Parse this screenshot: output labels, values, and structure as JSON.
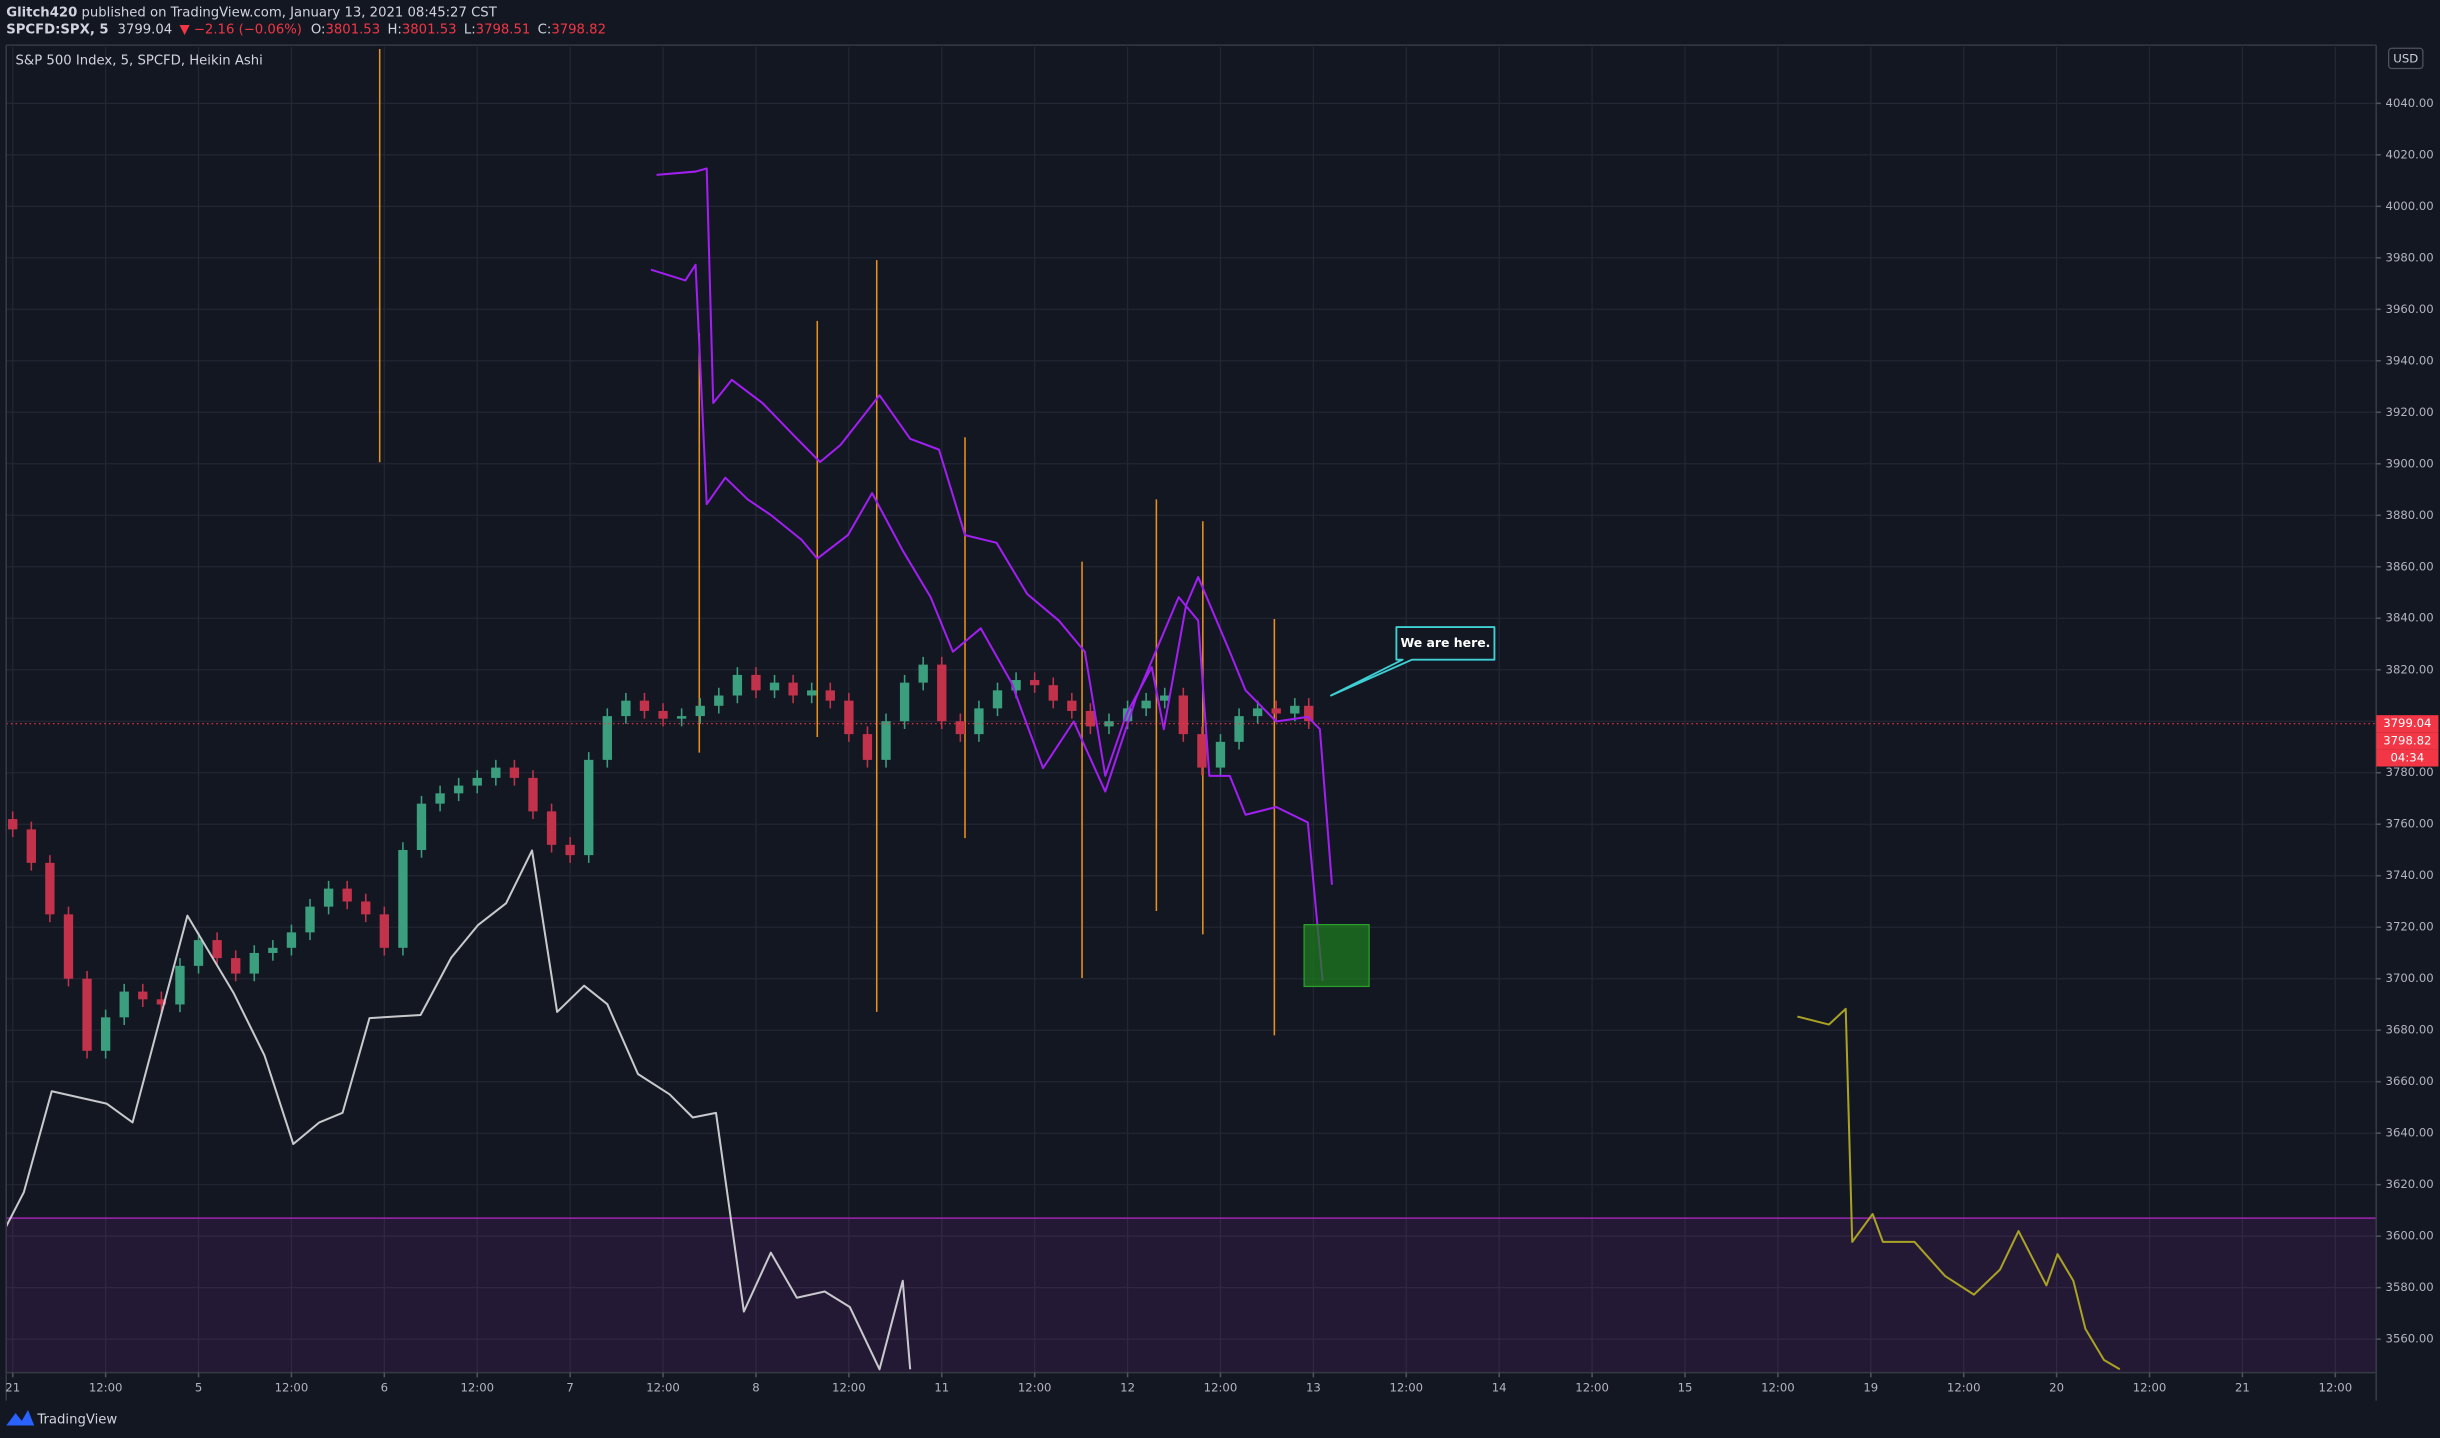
{
  "header": {
    "author": "Glitch420",
    "published": "published on TradingView.com, January 13, 2021 08:45:27 CST",
    "symbol": "SPCFD:SPX, 5",
    "last": 3799.04,
    "change": "▼ −2.16 (−0.06%)",
    "ohlc": [
      {
        "label": "O:",
        "value": 3801.53
      },
      {
        "label": "H:",
        "value": 3801.53
      },
      {
        "label": "L:",
        "value": 3798.51
      },
      {
        "label": "C:",
        "value": 3798.82
      }
    ]
  },
  "footer": {
    "brand": "TradingView"
  },
  "chart_data": {
    "type": "candlestick",
    "title": "S&P 500 Index, 5, SPCFD, Heikin Ashi",
    "currency": "USD",
    "countdown": "04:34",
    "grid": true,
    "background": "#131722",
    "xlim": [
      -0.07,
      25.44
    ],
    "ylim": [
      3547,
      4062
    ],
    "xticks": [
      {
        "value": 0,
        "label": "21"
      },
      {
        "value": 1,
        "label": "12:00"
      },
      {
        "value": 2,
        "label": "5"
      },
      {
        "value": 3,
        "label": "12:00"
      },
      {
        "value": 4,
        "label": "6"
      },
      {
        "value": 5,
        "label": "12:00"
      },
      {
        "value": 6,
        "label": "7"
      },
      {
        "value": 7,
        "label": "12:00"
      },
      {
        "value": 8,
        "label": "8"
      },
      {
        "value": 9,
        "label": "12:00"
      },
      {
        "value": 10,
        "label": "11"
      },
      {
        "value": 11,
        "label": "12:00"
      },
      {
        "value": 12,
        "label": "12"
      },
      {
        "value": 13,
        "label": "12:00"
      },
      {
        "value": 14,
        "label": "13"
      },
      {
        "value": 15,
        "label": "12:00"
      },
      {
        "value": 16,
        "label": "14"
      },
      {
        "value": 17,
        "label": "12:00"
      },
      {
        "value": 18,
        "label": "15"
      },
      {
        "value": 19,
        "label": "12:00"
      },
      {
        "value": 20,
        "label": "19"
      },
      {
        "value": 21,
        "label": "12:00"
      },
      {
        "value": 22,
        "label": "20"
      },
      {
        "value": 23,
        "label": "12:00"
      },
      {
        "value": 24,
        "label": "21"
      },
      {
        "value": 25,
        "label": "12:00"
      }
    ],
    "yticks": [
      {
        "value": 3560,
        "label": "3560.00"
      },
      {
        "value": 3580,
        "label": "3580.00"
      },
      {
        "value": 3600,
        "label": "3600.00"
      },
      {
        "value": 3620,
        "label": "3620.00"
      },
      {
        "value": 3640,
        "label": "3640.00"
      },
      {
        "value": 3660,
        "label": "3660.00"
      },
      {
        "value": 3680,
        "label": "3680.00"
      },
      {
        "value": 3700,
        "label": "3700.00"
      },
      {
        "value": 3720,
        "label": "3720.00"
      },
      {
        "value": 3740,
        "label": "3740.00"
      },
      {
        "value": 3760,
        "label": "3760.00"
      },
      {
        "value": 3780,
        "label": "3780.00"
      },
      {
        "value": 3800,
        "label": "3800.00"
      },
      {
        "value": 3820,
        "label": "3820.00"
      },
      {
        "value": 3840,
        "label": "3840.00"
      },
      {
        "value": 3860,
        "label": "3860.00"
      },
      {
        "value": 3880,
        "label": "3880.00"
      },
      {
        "value": 3900,
        "label": "3900.00"
      },
      {
        "value": 3920,
        "label": "3920.00"
      },
      {
        "value": 3940,
        "label": "3940.00"
      },
      {
        "value": 3960,
        "label": "3960.00"
      },
      {
        "value": 3980,
        "label": "3980.00"
      },
      {
        "value": 4000,
        "label": "4000.00"
      },
      {
        "value": 4020,
        "label": "4020.00"
      },
      {
        "value": 4040,
        "label": "4040.00"
      }
    ],
    "candles": {
      "up_color": "#3b9f7e",
      "down_color": "#c2334b",
      "x": [
        0,
        0.2,
        0.4,
        0.6,
        0.8,
        1.0,
        1.2,
        1.4,
        1.6,
        1.8,
        2.0,
        2.2,
        2.4,
        2.6,
        2.8,
        3.0,
        3.2,
        3.4,
        3.6,
        3.8,
        4.0,
        4.2,
        4.4,
        4.6,
        4.8,
        5.0,
        5.2,
        5.4,
        5.6,
        5.8,
        6.0,
        6.2,
        6.4,
        6.6,
        6.8,
        7.0,
        7.2,
        7.4,
        7.6,
        7.8,
        8.0,
        8.2,
        8.4,
        8.6,
        8.8,
        9.0,
        9.2,
        9.4,
        9.6,
        9.8,
        10.0,
        10.2,
        10.4,
        10.6,
        10.8,
        11.0,
        11.2,
        11.4,
        11.6,
        11.8,
        12.0,
        12.2,
        12.4,
        12.6,
        12.8,
        13.0,
        13.2,
        13.4,
        13.6,
        13.8,
        13.95
      ],
      "open": [
        3762,
        3758,
        3745,
        3725,
        3700,
        3672,
        3685,
        3695,
        3692,
        3690,
        3705,
        3715,
        3708,
        3702,
        3710,
        3712,
        3718,
        3728,
        3735,
        3730,
        3725,
        3712,
        3750,
        3768,
        3772,
        3775,
        3778,
        3782,
        3778,
        3765,
        3752,
        3748,
        3785,
        3802,
        3808,
        3804,
        3801,
        3802,
        3806,
        3810,
        3818,
        3812,
        3815,
        3810,
        3812,
        3808,
        3795,
        3785,
        3800,
        3815,
        3822,
        3800,
        3795,
        3805,
        3812,
        3816,
        3814,
        3808,
        3804,
        3798,
        3800,
        3805,
        3808,
        3810,
        3795,
        3782,
        3792,
        3802,
        3805,
        3803,
        3806
      ],
      "high": [
        3765,
        3761,
        3748,
        3728,
        3703,
        3688,
        3698,
        3698,
        3695,
        3708,
        3718,
        3718,
        3711,
        3713,
        3715,
        3721,
        3731,
        3738,
        3738,
        3733,
        3728,
        3753,
        3771,
        3775,
        3778,
        3781,
        3785,
        3785,
        3781,
        3768,
        3755,
        3788,
        3805,
        3811,
        3811,
        3807,
        3805,
        3809,
        3813,
        3821,
        3821,
        3818,
        3818,
        3815,
        3815,
        3811,
        3798,
        3803,
        3818,
        3825,
        3825,
        3803,
        3808,
        3815,
        3819,
        3819,
        3817,
        3811,
        3807,
        3803,
        3808,
        3811,
        3813,
        3813,
        3798,
        3795,
        3805,
        3808,
        3808,
        3809,
        3809
      ],
      "low": [
        3755,
        3742,
        3722,
        3697,
        3669,
        3669,
        3682,
        3689,
        3687,
        3687,
        3702,
        3705,
        3699,
        3699,
        3707,
        3709,
        3715,
        3725,
        3727,
        3722,
        3709,
        3709,
        3747,
        3765,
        3769,
        3772,
        3775,
        3775,
        3762,
        3749,
        3745,
        3745,
        3782,
        3799,
        3801,
        3798,
        3798,
        3799,
        3803,
        3807,
        3809,
        3809,
        3807,
        3807,
        3805,
        3792,
        3782,
        3782,
        3797,
        3812,
        3797,
        3792,
        3792,
        3802,
        3809,
        3811,
        3805,
        3801,
        3795,
        3795,
        3797,
        3802,
        3805,
        3792,
        3779,
        3779,
        3789,
        3799,
        3800,
        3800,
        3797
      ],
      "close": [
        3758,
        3745,
        3725,
        3700,
        3672,
        3685,
        3695,
        3692,
        3690,
        3705,
        3715,
        3708,
        3702,
        3710,
        3712,
        3718,
        3728,
        3735,
        3730,
        3725,
        3712,
        3750,
        3768,
        3772,
        3775,
        3778,
        3782,
        3778,
        3765,
        3752,
        3748,
        3785,
        3802,
        3808,
        3804,
        3801,
        3802,
        3806,
        3810,
        3818,
        3812,
        3815,
        3810,
        3812,
        3808,
        3795,
        3785,
        3800,
        3815,
        3822,
        3800,
        3795,
        3805,
        3812,
        3816,
        3814,
        3808,
        3804,
        3798,
        3800,
        3805,
        3808,
        3810,
        3795,
        3782,
        3792,
        3802,
        3805,
        3803,
        3806,
        3800
      ]
    },
    "series": [
      {
        "color": "#a21ff2",
        "x": [
          6.93,
          7.35,
          7.47,
          7.54,
          7.74,
          8.07,
          8.41,
          8.69,
          8.91,
          9.33,
          9.66,
          9.97,
          10.25,
          10.59,
          10.92,
          11.26,
          11.54,
          11.76,
          11.99,
          12.26,
          12.39,
          12.63,
          12.76,
          13.1,
          13.27,
          13.6,
          13.94,
          14.07,
          14.2
        ],
        "values": [
          4012.2,
          4013.5,
          4014.7,
          3923.6,
          3932.6,
          3923.6,
          3910.9,
          3900.7,
          3907.3,
          3926.6,
          3909.7,
          3905.5,
          3872.3,
          3869.3,
          3849.4,
          3839.1,
          3827.0,
          3778.8,
          3802.9,
          3821.0,
          3796.9,
          3845.1,
          3856.0,
          3827.0,
          3812.0,
          3799.9,
          3801.7,
          3796.9,
          3736.5
        ]
      },
      {
        "color": "#a21ff2",
        "x": [
          6.87,
          7.24,
          7.35,
          7.47,
          7.67,
          7.91,
          8.16,
          8.49,
          8.66,
          8.99,
          9.25,
          9.58,
          9.88,
          10.12,
          10.42,
          10.75,
          11.09,
          11.42,
          11.76,
          12.09,
          12.55,
          12.76,
          12.88,
          13.1,
          13.27,
          13.6,
          13.94,
          14.1
        ],
        "values": [
          3975.4,
          3971.2,
          3977.3,
          3884.3,
          3894.6,
          3886.2,
          3880.1,
          3870.5,
          3863.2,
          3872.3,
          3888.6,
          3866.3,
          3848.2,
          3827.0,
          3836.1,
          3815.0,
          3781.8,
          3799.9,
          3772.7,
          3808.9,
          3848.2,
          3839.1,
          3778.8,
          3778.8,
          3763.7,
          3766.7,
          3760.7,
          3699.1
        ]
      },
      {
        "color": "#c8c9cc",
        "x": [
          -0.07,
          0.12,
          0.42,
          1.01,
          1.29,
          1.88,
          2.38,
          2.71,
          3.02,
          3.3,
          3.55,
          3.84,
          4.39,
          4.72,
          5.01,
          5.31,
          5.59,
          5.86,
          6.15,
          6.4,
          6.73,
          7.07,
          7.32,
          7.57,
          7.87,
          8.16,
          8.44,
          8.74,
          9.01,
          9.33,
          9.58,
          9.66
        ],
        "values": [
          3603.8,
          3617.1,
          3656.3,
          3651.5,
          3644.2,
          3724.5,
          3694.3,
          3670.2,
          3635.8,
          3644.2,
          3647.9,
          3684.7,
          3685.9,
          3708.2,
          3720.9,
          3729.3,
          3749.8,
          3687.1,
          3697.3,
          3690.1,
          3663.0,
          3655.1,
          3646.1,
          3647.9,
          3570.7,
          3593.6,
          3576.1,
          3578.5,
          3572.5,
          3548.3,
          3582.7,
          3548.3
        ]
      },
      {
        "color": "#a9a224",
        "x": [
          19.21,
          19.55,
          19.73,
          19.8,
          20.02,
          20.13,
          20.47,
          20.8,
          21.11,
          21.39,
          21.59,
          21.89,
          22.01,
          22.18,
          22.31,
          22.51,
          22.68
        ],
        "values": [
          3685.3,
          3682.2,
          3688.3,
          3597.8,
          3608.6,
          3597.8,
          3597.8,
          3584.5,
          3577.3,
          3587.0,
          3602.0,
          3580.9,
          3593.0,
          3582.7,
          3564.0,
          3551.9,
          3548.3
        ]
      }
    ],
    "spikes": {
      "color": "#e8901e",
      "x": [
        3.95,
        7.39,
        8.66,
        9.3,
        10.25,
        11.51,
        12.31,
        12.81,
        13.58
      ],
      "low": [
        3900.6,
        3787.8,
        3793.9,
        3687.1,
        3754.6,
        3700.3,
        3726.3,
        3717.2,
        3678.0
      ],
      "high": [
        4061.1,
        3950.7,
        3955.5,
        3979.1,
        3910.3,
        3862.0,
        3886.2,
        3877.7,
        3839.7
      ]
    },
    "box": {
      "color": "#1e7a1e",
      "x": [
        13.9,
        14.6
      ],
      "y": [
        3697,
        3721
      ]
    },
    "band": {
      "color": "#9c27b0",
      "top": 3607
    },
    "annotation": {
      "text": "We are here.",
      "x": 14.19,
      "y": 3810,
      "color": "#3fd0d4"
    },
    "price_tag_color": "#f23645"
  }
}
